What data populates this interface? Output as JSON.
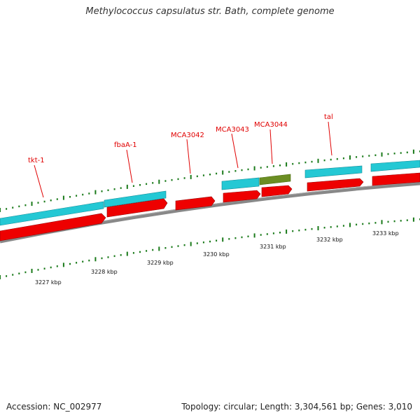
{
  "title": "Methylococcus capsulatus str. Bath, complete genome",
  "footer": {
    "accession": "Accession: NC_002977",
    "summary": "Topology: circular; Length: 3,304,561 bp; Genes: 3,010"
  },
  "colors": {
    "plus_gene": "#24c8d4",
    "minus_gene": "#ee0000",
    "selected_gene": "#6b8e23",
    "backbone": "#777777",
    "tick": "#1a7a1a",
    "label": "#e00000"
  },
  "gene_labels": [
    "tkt-1",
    "fbaA-1",
    "MCA3042",
    "MCA3043",
    "MCA3044",
    "tal"
  ],
  "kbp_labels": [
    "3227 kbp",
    "3228 kbp",
    "3229 kbp",
    "3230 kbp",
    "3231 kbp",
    "3232 kbp",
    "3233 kbp"
  ]
}
